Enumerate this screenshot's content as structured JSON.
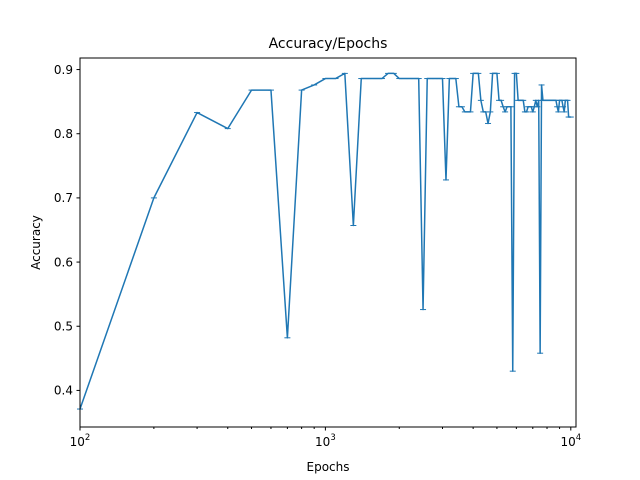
{
  "chart_data": {
    "type": "line",
    "title": "Accuracy/Epochs",
    "xlabel": "Epochs",
    "ylabel": "Accuracy",
    "xscale": "log",
    "xlim": [
      100,
      10500
    ],
    "ylim": [
      0.343,
      0.918
    ],
    "grid": false,
    "legend": "none",
    "line_color": "#1f77b4",
    "x_ticks": [
      {
        "value": 100,
        "base": "10",
        "exp": "2"
      },
      {
        "value": 1000,
        "base": "10",
        "exp": "3"
      },
      {
        "value": 10000,
        "base": "10",
        "exp": "4"
      }
    ],
    "y_ticks": [
      {
        "value": 0.4,
        "label": "0.4"
      },
      {
        "value": 0.5,
        "label": "0.5"
      },
      {
        "value": 0.6,
        "label": "0.6"
      },
      {
        "value": 0.7,
        "label": "0.7"
      },
      {
        "value": 0.8,
        "label": "0.8"
      },
      {
        "value": 0.9,
        "label": "0.9"
      }
    ],
    "series": [
      {
        "x": [
          100,
          200,
          300,
          400,
          500,
          600,
          700,
          800,
          900,
          1000,
          1100,
          1200,
          1300,
          1400,
          1500,
          1600,
          1700,
          1800,
          1900,
          2000,
          2100,
          2200,
          2300,
          2400,
          2500,
          2600,
          2700,
          2800,
          2900,
          3000,
          3100,
          3200,
          3300,
          3400,
          3500,
          3600,
          3700,
          3800,
          3900,
          4000,
          4100,
          4200,
          4300,
          4400,
          4500,
          4600,
          4700,
          4800,
          4900,
          5000,
          5100,
          5200,
          5300,
          5400,
          5500,
          5600,
          5700,
          5800,
          5900,
          6000,
          6100,
          6200,
          6300,
          6400,
          6500,
          6600,
          6700,
          6800,
          6900,
          7000,
          7100,
          7200,
          7300,
          7400,
          7500,
          7600,
          7700,
          7800,
          7900,
          8000,
          8100,
          8200,
          8300,
          8400,
          8500,
          8600,
          8700,
          8800,
          8900,
          9000,
          9100,
          9200,
          9300,
          9400,
          9500,
          9600,
          9700,
          9800,
          9900,
          10000
        ],
        "y": [
          0.371,
          0.7,
          0.833,
          0.808,
          0.868,
          0.868,
          0.482,
          0.868,
          0.876,
          0.886,
          0.886,
          0.894,
          0.657,
          0.886,
          0.886,
          0.886,
          0.886,
          0.894,
          0.894,
          0.886,
          0.886,
          0.886,
          0.886,
          0.886,
          0.526,
          0.886,
          0.886,
          0.886,
          0.886,
          0.886,
          0.728,
          0.886,
          0.886,
          0.886,
          0.842,
          0.842,
          0.834,
          0.834,
          0.834,
          0.894,
          0.894,
          0.894,
          0.852,
          0.834,
          0.834,
          0.816,
          0.834,
          0.894,
          0.894,
          0.894,
          0.852,
          0.852,
          0.842,
          0.834,
          0.842,
          0.842,
          0.842,
          0.43,
          0.894,
          0.894,
          0.852,
          0.852,
          0.852,
          0.852,
          0.834,
          0.834,
          0.842,
          0.842,
          0.842,
          0.834,
          0.842,
          0.852,
          0.842,
          0.852,
          0.458,
          0.876,
          0.852,
          0.852,
          0.852,
          0.852,
          0.852,
          0.852,
          0.852,
          0.852,
          0.852,
          0.852,
          0.852,
          0.842,
          0.834,
          0.852,
          0.852,
          0.852,
          0.842,
          0.834,
          0.852,
          0.852,
          0.852,
          0.826,
          0.826,
          0.826
        ]
      }
    ]
  }
}
